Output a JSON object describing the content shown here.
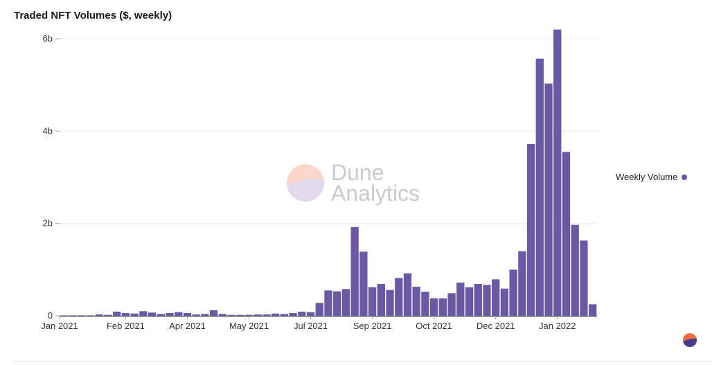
{
  "title": "Traded NFT Volumes ($, weekly)",
  "legend_label": "Weekly Volume",
  "watermark": {
    "line1": "Dune",
    "line2": "Analytics"
  },
  "colors": {
    "bar": "#6a5aa6",
    "grid": "#ececec",
    "axis": "#333333",
    "logo_top": "#f26a3f",
    "logo_bottom": "#4b3a8c"
  },
  "chart_data": {
    "type": "bar",
    "title": "Traded NFT Volumes ($, weekly)",
    "xlabel": "",
    "ylabel": "",
    "ylim": [
      0,
      6.0
    ],
    "y_unit": "billion $",
    "yticks": [
      {
        "value": 0,
        "label": "0"
      },
      {
        "value": 2,
        "label": "2b"
      },
      {
        "value": 4,
        "label": "4b"
      },
      {
        "value": 6,
        "label": "6b"
      }
    ],
    "xticks": [
      {
        "index": 0,
        "label": "Jan 2021"
      },
      {
        "index": 7,
        "label": "Feb 2021"
      },
      {
        "index": 14,
        "label": "Apr 2021"
      },
      {
        "index": 21,
        "label": "May 2021"
      },
      {
        "index": 28,
        "label": "Jul 2021"
      },
      {
        "index": 35,
        "label": "Sep 2021"
      },
      {
        "index": 42,
        "label": "Oct 2021"
      },
      {
        "index": 49,
        "label": "Dec 2021"
      },
      {
        "index": 56,
        "label": "Jan 2022"
      }
    ],
    "series": [
      {
        "name": "Weekly Volume",
        "values": [
          0.005,
          0.01,
          0.01,
          0.01,
          0.03,
          0.02,
          0.09,
          0.06,
          0.05,
          0.1,
          0.07,
          0.04,
          0.06,
          0.08,
          0.06,
          0.03,
          0.04,
          0.12,
          0.04,
          0.02,
          0.02,
          0.02,
          0.03,
          0.03,
          0.05,
          0.04,
          0.06,
          0.09,
          0.08,
          0.28,
          0.55,
          0.53,
          0.58,
          1.92,
          1.39,
          0.62,
          0.69,
          0.56,
          0.82,
          0.92,
          0.63,
          0.52,
          0.38,
          0.38,
          0.49,
          0.72,
          0.62,
          0.69,
          0.67,
          0.79,
          0.59,
          1.0,
          1.4,
          3.72,
          5.57,
          5.03,
          6.2,
          3.55,
          1.97,
          1.63,
          0.25
        ]
      }
    ]
  }
}
